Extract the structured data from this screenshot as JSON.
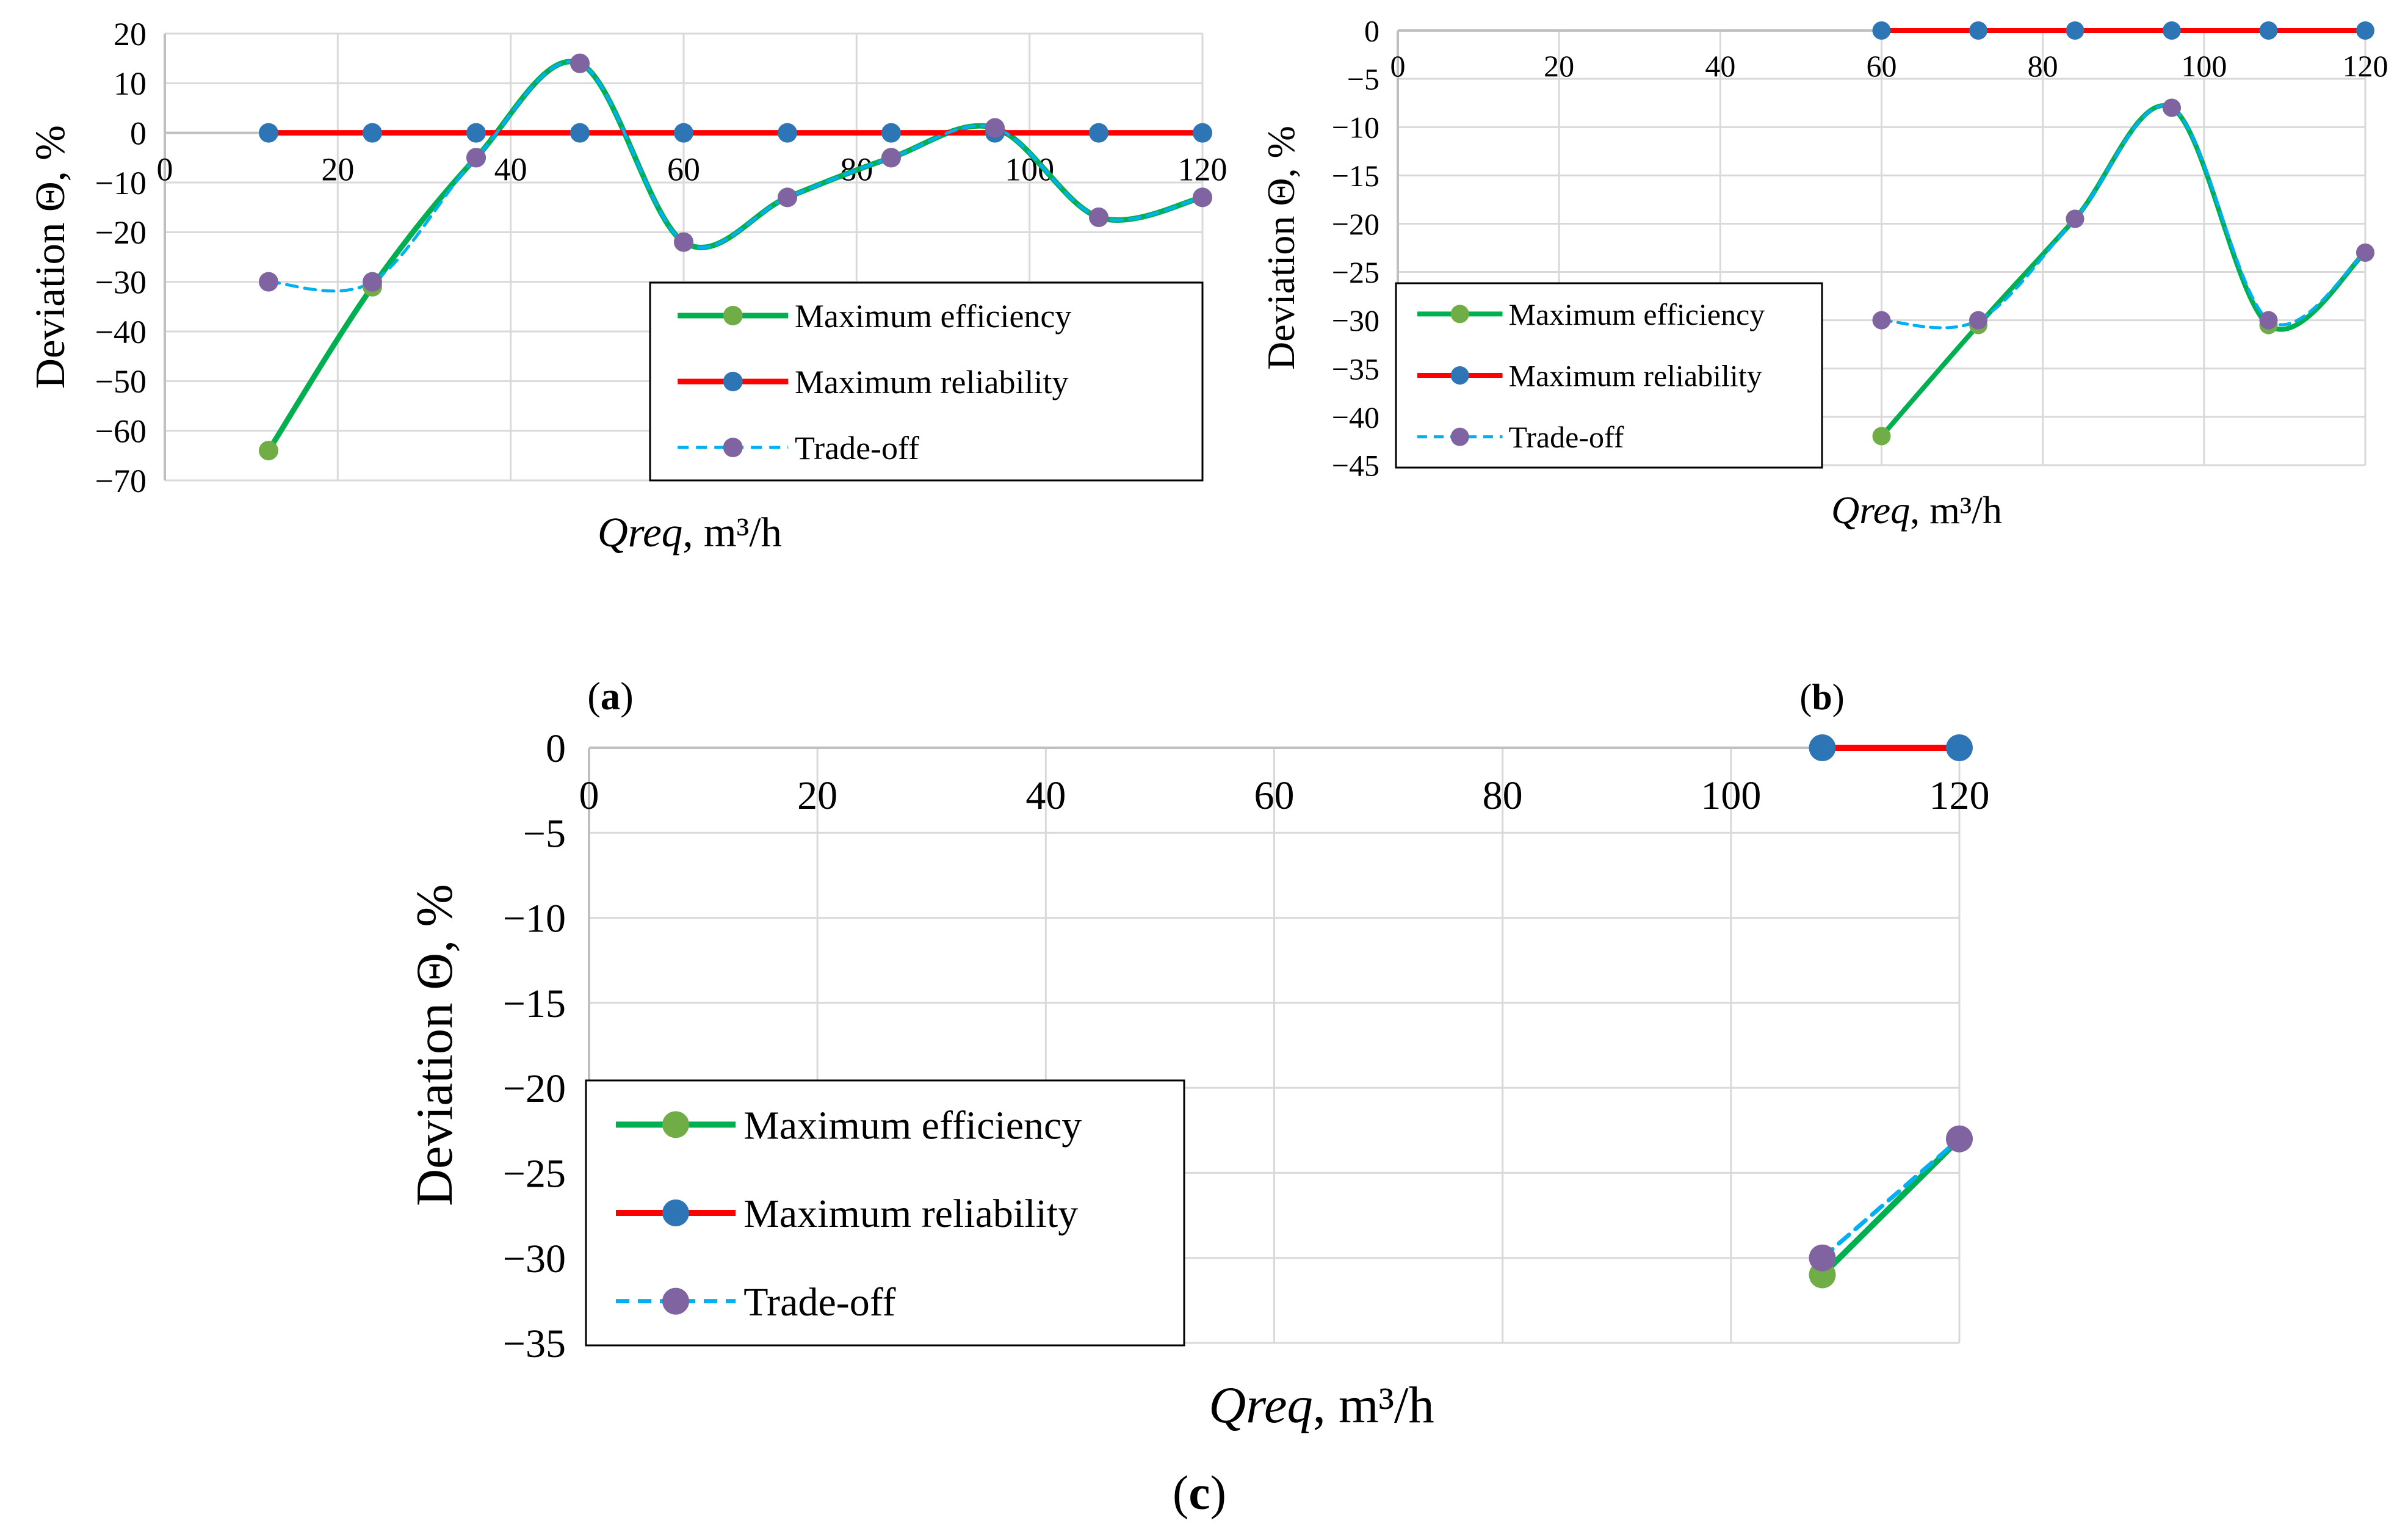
{
  "colors": {
    "efficiency_line": "#00B050",
    "efficiency_marker": "#70AD47",
    "reliability_line": "#FF0000",
    "reliability_marker": "#2E75B6",
    "tradeoff_line": "#00B0F0",
    "tradeoff_marker": "#8064A2",
    "grid": "#D9D9D9",
    "axis": "#BFBFBF"
  },
  "chart_data": [
    {
      "id": "a",
      "type": "line",
      "panel_label": "(a)",
      "title": "",
      "xlabel_var": "Qreq",
      "xlabel_unit": ", m³/h",
      "ylabel": "Deviation Θ, %",
      "xlim": [
        0,
        120
      ],
      "ylim": [
        -70,
        20
      ],
      "xticks": [
        "0",
        "20",
        "40",
        "60",
        "80",
        "100",
        "120"
      ],
      "yticks": [
        "20",
        "10",
        "0",
        "−10",
        "−20",
        "−30",
        "−40",
        "−50",
        "−60",
        "−70"
      ],
      "grid": true,
      "legend_position": "bottom-right",
      "series": [
        {
          "name": "Maximum efficiency",
          "key": "efficiency",
          "style": "solid",
          "x": [
            12,
            24,
            36,
            48,
            60,
            72,
            84,
            96,
            108,
            120
          ],
          "y": [
            -64,
            -31,
            -5,
            14,
            -22,
            -13,
            -5,
            1,
            -17,
            -13
          ]
        },
        {
          "name": "Maximum reliability",
          "key": "reliability",
          "style": "solid",
          "x": [
            12,
            24,
            36,
            48,
            60,
            72,
            84,
            96,
            108,
            120
          ],
          "y": [
            0,
            0,
            0,
            0,
            0,
            0,
            0,
            0,
            0,
            0
          ]
        },
        {
          "name": "Trade-off",
          "key": "tradeoff",
          "style": "dashed",
          "x": [
            12,
            24,
            36,
            48,
            60,
            72,
            84,
            96,
            108,
            120
          ],
          "y": [
            -30,
            -30,
            -5,
            14,
            -22,
            -13,
            -5,
            1,
            -17,
            -13
          ]
        }
      ]
    },
    {
      "id": "b",
      "type": "line",
      "panel_label": "(b)",
      "title": "",
      "xlabel_var": "Qreq",
      "xlabel_unit": ", m³/h",
      "ylabel": "Deviation Θ, %",
      "xlim": [
        0,
        120
      ],
      "ylim": [
        -45,
        0
      ],
      "xticks": [
        "0",
        "20",
        "40",
        "60",
        "80",
        "100",
        "120"
      ],
      "yticks": [
        "0",
        "−5",
        "−10",
        "−15",
        "−20",
        "−25",
        "−30",
        "−35",
        "−40",
        "−45"
      ],
      "grid": true,
      "legend_position": "bottom-left",
      "series": [
        {
          "name": "Maximum efficiency",
          "key": "efficiency",
          "style": "solid",
          "x": [
            60,
            72,
            84,
            96,
            108,
            120
          ],
          "y": [
            -42,
            -30.5,
            -19.5,
            -8,
            -30.5,
            -23
          ]
        },
        {
          "name": "Maximum reliability",
          "key": "reliability",
          "style": "solid",
          "x": [
            60,
            72,
            84,
            96,
            108,
            120
          ],
          "y": [
            0,
            0,
            0,
            0,
            0,
            0
          ]
        },
        {
          "name": "Trade-off",
          "key": "tradeoff",
          "style": "dashed",
          "x": [
            60,
            72,
            84,
            96,
            108,
            120
          ],
          "y": [
            -30,
            -30,
            -19.5,
            -8,
            -30,
            -23
          ]
        }
      ]
    },
    {
      "id": "c",
      "type": "line",
      "panel_label": "(c)",
      "title": "",
      "xlabel_var": "Qreq",
      "xlabel_unit": ", m³/h",
      "ylabel": "Deviation Θ, %",
      "xlim": [
        0,
        120
      ],
      "ylim": [
        -35,
        0
      ],
      "xticks": [
        "0",
        "20",
        "40",
        "60",
        "80",
        "100",
        "120"
      ],
      "yticks": [
        "0",
        "−5",
        "−10",
        "−15",
        "−20",
        "−25",
        "−30",
        "−35"
      ],
      "grid": true,
      "legend_position": "bottom-left",
      "series": [
        {
          "name": "Maximum efficiency",
          "key": "efficiency",
          "style": "solid",
          "x": [
            108,
            120
          ],
          "y": [
            -31,
            -23
          ]
        },
        {
          "name": "Maximum reliability",
          "key": "reliability",
          "style": "solid",
          "x": [
            108,
            120
          ],
          "y": [
            0,
            0
          ]
        },
        {
          "name": "Trade-off",
          "key": "tradeoff",
          "style": "dashed",
          "x": [
            108,
            120
          ],
          "y": [
            -30,
            -23
          ]
        }
      ]
    }
  ]
}
